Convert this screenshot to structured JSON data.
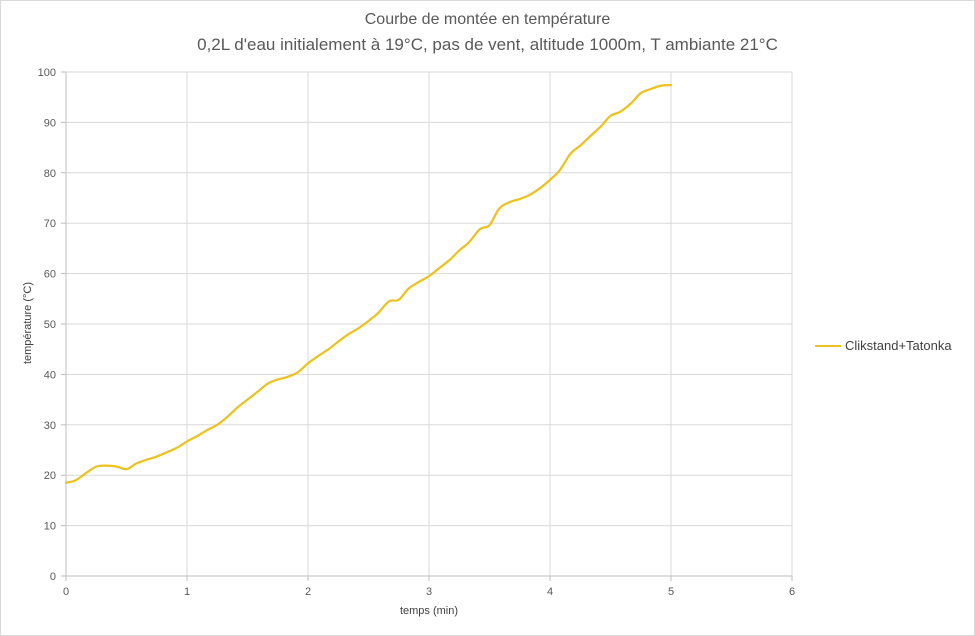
{
  "chart_data": {
    "type": "line",
    "title": "Courbe de montée en température",
    "subtitle": "0,2L d'eau initialement à 19°C, pas de vent, altitude 1000m, T ambiante 21°C",
    "xlabel": "temps (min)",
    "ylabel": "température (°C)",
    "xlim": [
      0,
      6
    ],
    "ylim": [
      0,
      100
    ],
    "x_ticks": [
      "0",
      "1",
      "2",
      "3",
      "4",
      "5",
      "6"
    ],
    "y_ticks": [
      "0",
      "10",
      "20",
      "30",
      "40",
      "50",
      "60",
      "70",
      "80",
      "90",
      "100"
    ],
    "grid": true,
    "legend_position": "right",
    "series": [
      {
        "name": "Clikstand+Tatonka",
        "color": "#ecc21e",
        "x": [
          0,
          0.08,
          0.17,
          0.25,
          0.33,
          0.42,
          0.5,
          0.58,
          0.67,
          0.75,
          0.83,
          0.92,
          1.0,
          1.08,
          1.17,
          1.25,
          1.33,
          1.42,
          1.5,
          1.58,
          1.67,
          1.75,
          1.83,
          1.92,
          2.0,
          2.08,
          2.17,
          2.25,
          2.33,
          2.42,
          2.5,
          2.58,
          2.67,
          2.75,
          2.83,
          2.92,
          3.0,
          3.08,
          3.17,
          3.25,
          3.33,
          3.42,
          3.5,
          3.58,
          3.67,
          3.75,
          3.83,
          3.92,
          4.0,
          4.08,
          4.17,
          4.25,
          4.33,
          4.42,
          4.5,
          4.58,
          4.67,
          4.75,
          4.83,
          4.92,
          5.0
        ],
        "y": [
          18.5,
          19,
          20.5,
          21.7,
          21.9,
          21.7,
          21.2,
          22.3,
          23.1,
          23.7,
          24.5,
          25.5,
          26.7,
          27.7,
          29,
          30,
          31.5,
          33.5,
          35,
          36.5,
          38.2,
          39,
          39.5,
          40.5,
          42.2,
          43.6,
          45,
          46.5,
          47.9,
          49.2,
          50.6,
          52.2,
          54.5,
          54.8,
          57,
          58.4,
          59.5,
          61,
          62.7,
          64.6,
          66.2,
          68.8,
          69.6,
          72.9,
          74.2,
          74.8,
          75.6,
          77,
          78.6,
          80.5,
          83.8,
          85.4,
          87.2,
          89.2,
          91.3,
          92.1,
          93.8,
          95.8,
          96.6,
          97.3,
          97.4
        ]
      }
    ]
  }
}
